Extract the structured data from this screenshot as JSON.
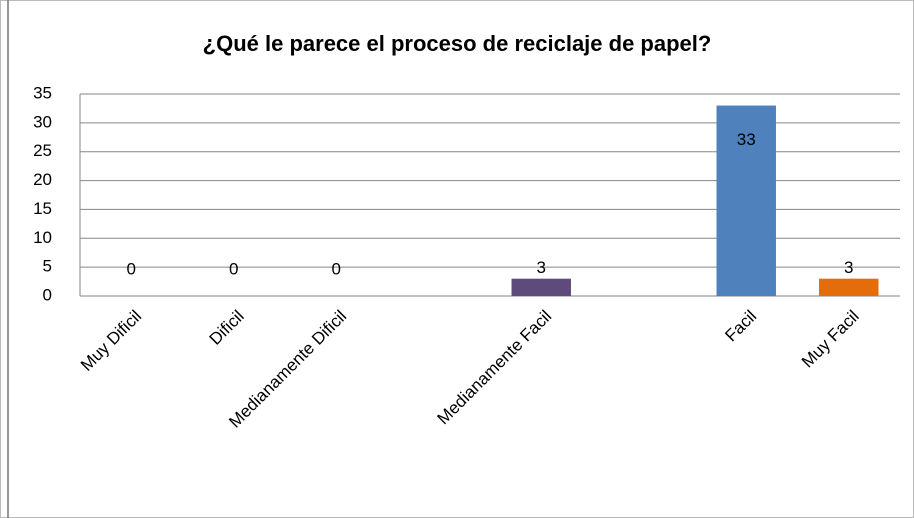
{
  "chart_data": {
    "type": "bar",
    "title": "¿Qué le parece el proceso de reciclaje de papel?",
    "categories": [
      "Muy Dificil",
      "Dificil",
      "Medianamente Dificil",
      null,
      "Medianamente Facil",
      null,
      "Facil",
      "Muy Facil"
    ],
    "values": [
      0,
      0,
      0,
      null,
      3,
      null,
      33,
      3
    ],
    "colors": [
      "#4f81bd",
      "#4f81bd",
      "#4f81bd",
      null,
      "#5f4b7b",
      null,
      "#4f81bd",
      "#e46c0a"
    ],
    "ylim": [
      0,
      35
    ],
    "yticks": [
      0,
      5,
      10,
      15,
      20,
      25,
      30,
      35
    ],
    "grid": true
  }
}
